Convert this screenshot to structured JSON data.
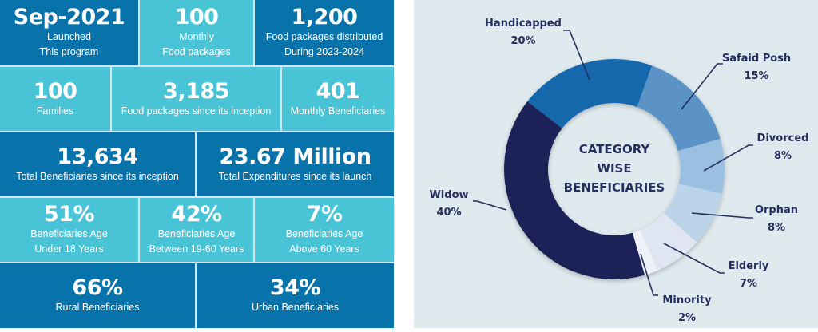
{
  "stats": {
    "launched": {
      "value": "Sep-2021",
      "line1": "Launched",
      "line2": "This program"
    },
    "monthly_packages": {
      "value": "100",
      "line1": "Monthly",
      "line2": "Food packages"
    },
    "packages_2023": {
      "value": "1,200",
      "line1": "Food packages distributed",
      "line2": "During 2023-2024"
    },
    "families": {
      "value": "100",
      "line1": "Families"
    },
    "packages_total": {
      "value": "3,185",
      "line1": "Food packages since its inception"
    },
    "monthly_beneficiaries": {
      "value": "401",
      "line1": "Monthly Beneficiaries"
    },
    "total_beneficiaries": {
      "value": "13,634",
      "line1": "Total Beneficiaries since its inception"
    },
    "total_expenditures": {
      "value": "23.67 Million",
      "line1": "Total Expenditures since its launch"
    },
    "age_under18": {
      "value": "51%",
      "line1": "Beneficiaries Age",
      "line2": "Under 18 Years"
    },
    "age_19_60": {
      "value": "42%",
      "line1": "Beneficiaries Age",
      "line2": "Between 19-60 Years"
    },
    "age_above60": {
      "value": "7%",
      "line1": "Beneficiaries Age",
      "line2": "Above 60 Years"
    },
    "rural": {
      "value": "66%",
      "line1": "Rural Beneficiaries"
    },
    "urban": {
      "value": "34%",
      "line1": "Urban Beneficiaries"
    }
  },
  "chart_data": {
    "type": "pie",
    "variant": "donut",
    "title": [
      "CATEGORY",
      "WISE",
      "BENEFICIARIES"
    ],
    "categories": [
      "Handicapped",
      "Safaid Posh",
      "Divorced",
      "Orphan",
      "Elderly",
      "Minority",
      "Widow"
    ],
    "values": [
      20,
      15,
      8,
      8,
      7,
      2,
      40
    ],
    "labels": [
      "20%",
      "15%",
      "8%",
      "8%",
      "7%",
      "2%",
      "40%"
    ],
    "colors": [
      "#1967ad",
      "#5b93c7",
      "#9abfe0",
      "#bcd4ea",
      "#dfe6f2",
      "#eef1f7",
      "#1f2459"
    ]
  }
}
